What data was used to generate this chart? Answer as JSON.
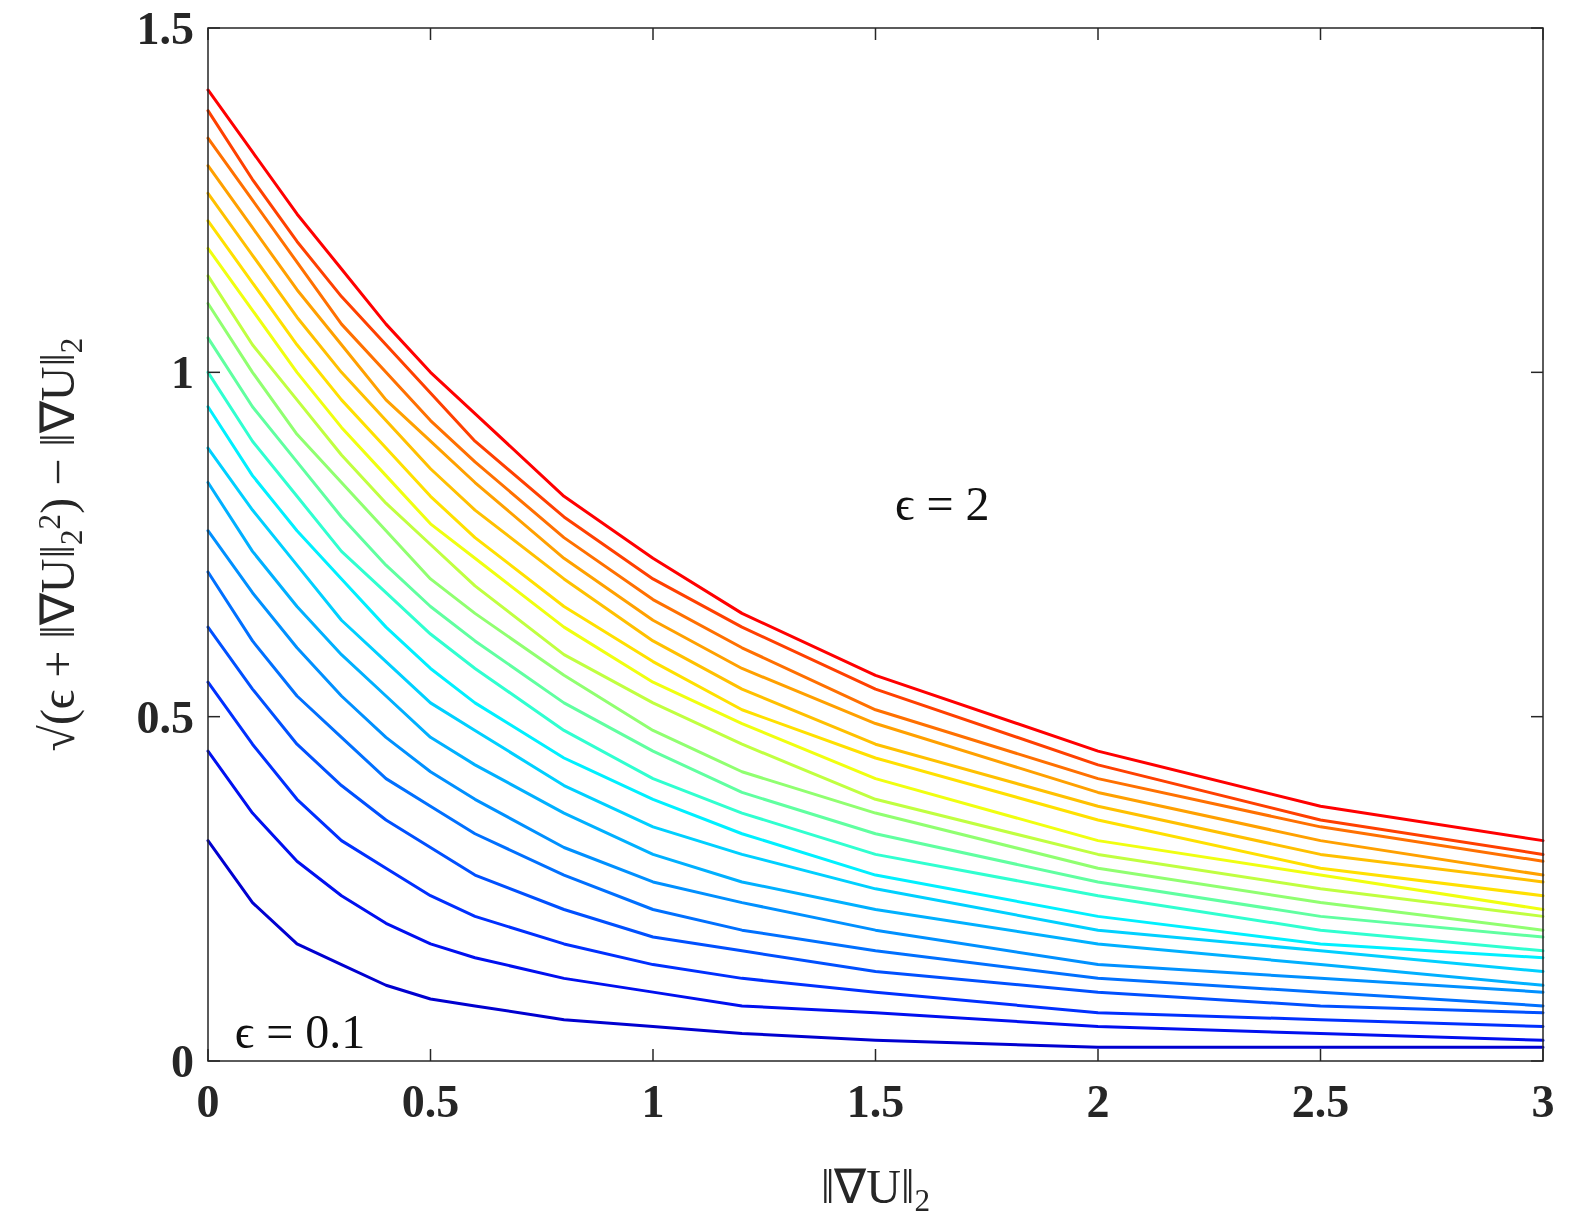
{
  "chart_data": {
    "type": "line",
    "xlabel": "‖∇U‖$_{2}$",
    "ylabel": "√(ϵ + ‖∇U‖$_{2}$$^{2}$) − ‖∇U‖$_{2}$",
    "x": [
      0,
      0.1,
      0.2,
      0.3,
      0.4,
      0.5,
      0.6,
      0.8,
      1,
      1.2,
      1.5,
      2,
      2.5,
      3
    ],
    "xlim": [
      0,
      3
    ],
    "xticks": [
      0,
      0.5,
      1,
      1.5,
      2,
      2.5,
      3
    ],
    "ylim": [
      0,
      1.5
    ],
    "yticks": [
      0,
      0.5,
      1,
      1.5
    ],
    "grid": false,
    "marker": "none",
    "line_style": "solid",
    "series": [
      {
        "color": "#0000d0",
        "values": [
          0.32,
          0.23,
          0.17,
          0.14,
          0.11,
          0.09,
          0.08,
          0.06,
          0.05,
          0.04,
          0.03,
          0.02,
          0.02,
          0.02
        ]
      },
      {
        "color": "#0010f0",
        "values": [
          0.45,
          0.36,
          0.29,
          0.24,
          0.2,
          0.17,
          0.15,
          0.12,
          0.1,
          0.08,
          0.07,
          0.05,
          0.04,
          0.03
        ]
      },
      {
        "color": "#0030ff",
        "values": [
          0.55,
          0.46,
          0.38,
          0.32,
          0.28,
          0.24,
          0.21,
          0.17,
          0.14,
          0.12,
          0.1,
          0.07,
          0.06,
          0.05
        ]
      },
      {
        "color": "#0050ff",
        "values": [
          0.63,
          0.54,
          0.46,
          0.4,
          0.35,
          0.31,
          0.27,
          0.22,
          0.18,
          0.16,
          0.13,
          0.1,
          0.08,
          0.07
        ]
      },
      {
        "color": "#0070ff",
        "values": [
          0.71,
          0.61,
          0.53,
          0.47,
          0.41,
          0.37,
          0.33,
          0.27,
          0.22,
          0.19,
          0.16,
          0.12,
          0.1,
          0.08
        ]
      },
      {
        "color": "#0090ff",
        "values": [
          0.77,
          0.68,
          0.6,
          0.53,
          0.47,
          0.42,
          0.38,
          0.31,
          0.26,
          0.23,
          0.19,
          0.14,
          0.12,
          0.1
        ]
      },
      {
        "color": "#00b0ff",
        "values": [
          0.84,
          0.74,
          0.66,
          0.59,
          0.53,
          0.47,
          0.43,
          0.36,
          0.3,
          0.26,
          0.22,
          0.17,
          0.14,
          0.11
        ]
      },
      {
        "color": "#00d0ff",
        "values": [
          0.89,
          0.8,
          0.72,
          0.64,
          0.58,
          0.52,
          0.48,
          0.4,
          0.34,
          0.3,
          0.25,
          0.19,
          0.16,
          0.13
        ]
      },
      {
        "color": "#00f0ff",
        "values": [
          0.95,
          0.85,
          0.77,
          0.7,
          0.63,
          0.57,
          0.52,
          0.44,
          0.38,
          0.33,
          0.27,
          0.21,
          0.17,
          0.15
        ]
      },
      {
        "color": "#30ffd0",
        "values": [
          1.0,
          0.9,
          0.82,
          0.74,
          0.68,
          0.62,
          0.57,
          0.48,
          0.41,
          0.36,
          0.3,
          0.24,
          0.19,
          0.16
        ]
      },
      {
        "color": "#60ffa0",
        "values": [
          1.05,
          0.95,
          0.87,
          0.79,
          0.72,
          0.66,
          0.61,
          0.52,
          0.45,
          0.39,
          0.33,
          0.26,
          0.21,
          0.18
        ]
      },
      {
        "color": "#90ff70",
        "values": [
          1.1,
          1.0,
          0.91,
          0.84,
          0.77,
          0.7,
          0.65,
          0.56,
          0.48,
          0.42,
          0.36,
          0.28,
          0.23,
          0.19
        ]
      },
      {
        "color": "#c0ff40",
        "values": [
          1.14,
          1.04,
          0.96,
          0.88,
          0.81,
          0.75,
          0.69,
          0.59,
          0.52,
          0.46,
          0.38,
          0.3,
          0.25,
          0.21
        ]
      },
      {
        "color": "#f0ff10",
        "values": [
          1.18,
          1.09,
          1.0,
          0.92,
          0.85,
          0.78,
          0.73,
          0.63,
          0.55,
          0.49,
          0.41,
          0.32,
          0.27,
          0.22
        ]
      },
      {
        "color": "#ffe000",
        "values": [
          1.22,
          1.13,
          1.04,
          0.96,
          0.89,
          0.82,
          0.76,
          0.66,
          0.58,
          0.51,
          0.44,
          0.35,
          0.28,
          0.24
        ]
      },
      {
        "color": "#ffc000",
        "values": [
          1.26,
          1.17,
          1.08,
          1.0,
          0.93,
          0.86,
          0.8,
          0.7,
          0.61,
          0.54,
          0.46,
          0.37,
          0.3,
          0.26
        ]
      },
      {
        "color": "#ffa000",
        "values": [
          1.3,
          1.21,
          1.12,
          1.04,
          0.96,
          0.9,
          0.84,
          0.73,
          0.64,
          0.57,
          0.49,
          0.39,
          0.32,
          0.27
        ]
      },
      {
        "color": "#ff7000",
        "values": [
          1.34,
          1.25,
          1.16,
          1.07,
          1.0,
          0.93,
          0.87,
          0.76,
          0.67,
          0.6,
          0.51,
          0.41,
          0.34,
          0.29
        ]
      },
      {
        "color": "#ff4000",
        "values": [
          1.38,
          1.28,
          1.19,
          1.11,
          1.04,
          0.97,
          0.9,
          0.79,
          0.7,
          0.63,
          0.54,
          0.43,
          0.35,
          0.3
        ]
      },
      {
        "color": "#ff0000",
        "values": [
          1.41,
          1.32,
          1.23,
          1.15,
          1.07,
          1.0,
          0.94,
          0.82,
          0.73,
          0.65,
          0.56,
          0.45,
          0.37,
          0.32
        ]
      }
    ],
    "annotations": [
      "ϵ = 2",
      "ϵ = 0.1"
    ]
  }
}
